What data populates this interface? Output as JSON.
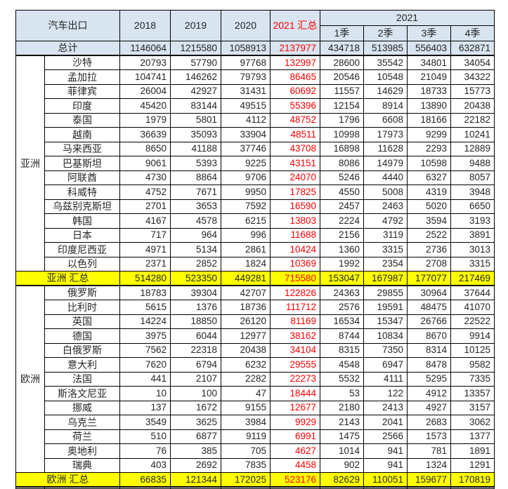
{
  "table": {
    "title": "汽车出口",
    "col_headers": {
      "years": [
        "2018",
        "2019",
        "2020"
      ],
      "summary": "2021 汇总",
      "group_year": "2021",
      "quarters": [
        "1季",
        "2季",
        "3季",
        "4季"
      ]
    },
    "red_value_column_index": 3,
    "total_row": {
      "label": "总计",
      "values": [
        1146064,
        1215580,
        1058913,
        2137977,
        434718,
        513985,
        556403,
        632871
      ]
    },
    "groups": [
      {
        "region": "亚洲",
        "rows": [
          {
            "country": "沙特",
            "values": [
              20793,
              57790,
              97768,
              132997,
              28600,
              35542,
              34801,
              34054
            ]
          },
          {
            "country": "孟加拉",
            "values": [
              104741,
              146262,
              79793,
              86465,
              20546,
              10548,
              21049,
              34322
            ]
          },
          {
            "country": "菲律宾",
            "values": [
              26004,
              42927,
              31431,
              60692,
              11557,
              14629,
              18733,
              15773
            ]
          },
          {
            "country": "印度",
            "values": [
              45420,
              83144,
              49515,
              55396,
              12154,
              8914,
              13890,
              20438
            ]
          },
          {
            "country": "泰国",
            "values": [
              1979,
              5801,
              4112,
              48752,
              1796,
              6608,
              18166,
              22182
            ]
          },
          {
            "country": "越南",
            "values": [
              36639,
              35093,
              33904,
              48511,
              10998,
              17973,
              9299,
              10241
            ]
          },
          {
            "country": "马来西亚",
            "values": [
              8650,
              41188,
              37746,
              43708,
              16898,
              11628,
              2293,
              12889
            ]
          },
          {
            "country": "巴基斯坦",
            "values": [
              9061,
              5393,
              9225,
              43151,
              8086,
              14979,
              10598,
              9488
            ]
          },
          {
            "country": "阿联酋",
            "values": [
              4730,
              8864,
              9706,
              24070,
              5246,
              4440,
              6327,
              8057
            ]
          },
          {
            "country": "科威特",
            "values": [
              4752,
              7671,
              9950,
              17825,
              4550,
              5008,
              4319,
              3948
            ]
          },
          {
            "country": "乌兹别克斯坦",
            "values": [
              2701,
              3653,
              7592,
              16590,
              2457,
              2463,
              5020,
              6650
            ]
          },
          {
            "country": "韩国",
            "values": [
              4167,
              4578,
              6215,
              13803,
              2224,
              4792,
              3594,
              3193
            ]
          },
          {
            "country": "日本",
            "values": [
              717,
              964,
              996,
              11688,
              2156,
              3119,
              2522,
              3891
            ]
          },
          {
            "country": "印度尼西亚",
            "values": [
              4971,
              5134,
              2861,
              10424,
              1360,
              3315,
              2736,
              3013
            ]
          },
          {
            "country": "以色列",
            "values": [
              2371,
              2852,
              1824,
              10369,
              1992,
              2354,
              2708,
              3315
            ]
          }
        ],
        "subtotal": {
          "label": "亚洲 汇总",
          "values": [
            514280,
            523350,
            449281,
            715580,
            153047,
            167987,
            177077,
            217469
          ]
        }
      },
      {
        "region": "欧洲",
        "rows": [
          {
            "country": "俄罗斯",
            "values": [
              18783,
              39304,
              42707,
              122826,
              24363,
              29855,
              30964,
              37644
            ]
          },
          {
            "country": "比利时",
            "values": [
              5615,
              1376,
              18736,
              111712,
              2576,
              19591,
              48475,
              41070
            ]
          },
          {
            "country": "英国",
            "values": [
              14224,
              18850,
              26120,
              81169,
              16534,
              15347,
              26766,
              22522
            ]
          },
          {
            "country": "德国",
            "values": [
              3975,
              6044,
              12977,
              38162,
              8744,
              10834,
              8670,
              9914
            ]
          },
          {
            "country": "白俄罗斯",
            "values": [
              7562,
              22318,
              20438,
              34104,
              8315,
              7350,
              8314,
              10125
            ]
          },
          {
            "country": "意大利",
            "values": [
              7620,
              6794,
              6232,
              29555,
              4548,
              6947,
              8478,
              9582
            ]
          },
          {
            "country": "法国",
            "values": [
              441,
              2107,
              2282,
              22273,
              5532,
              4111,
              5295,
              7335
            ]
          },
          {
            "country": "斯洛文尼亚",
            "values": [
              10,
              100,
              47,
              18444,
              53,
              122,
              4912,
              13357
            ]
          },
          {
            "country": "挪威",
            "values": [
              137,
              1672,
              9155,
              12677,
              2180,
              2413,
              4927,
              3157
            ]
          },
          {
            "country": "乌克兰",
            "values": [
              3549,
              3625,
              3984,
              9929,
              2143,
              2041,
              2683,
              3062
            ]
          },
          {
            "country": "荷兰",
            "values": [
              510,
              6877,
              9119,
              6991,
              1475,
              2566,
              1573,
              1377
            ]
          },
          {
            "country": "奥地利",
            "values": [
              76,
              385,
              705,
              4627,
              1014,
              941,
              781,
              1891
            ]
          },
          {
            "country": "瑞典",
            "values": [
              403,
              2692,
              7835,
              4458,
              902,
              941,
              1324,
              1291
            ]
          }
        ],
        "subtotal": {
          "label": "欧洲 汇总",
          "values": [
            66835,
            121344,
            172025,
            523176,
            82629,
            110051,
            159677,
            170819
          ]
        }
      }
    ],
    "colors": {
      "header_bg": "#d8e4f0",
      "subtotal_bg": "#ffff00",
      "accent_red": "#fe0000",
      "text": "#262626",
      "border": "#000000"
    }
  }
}
